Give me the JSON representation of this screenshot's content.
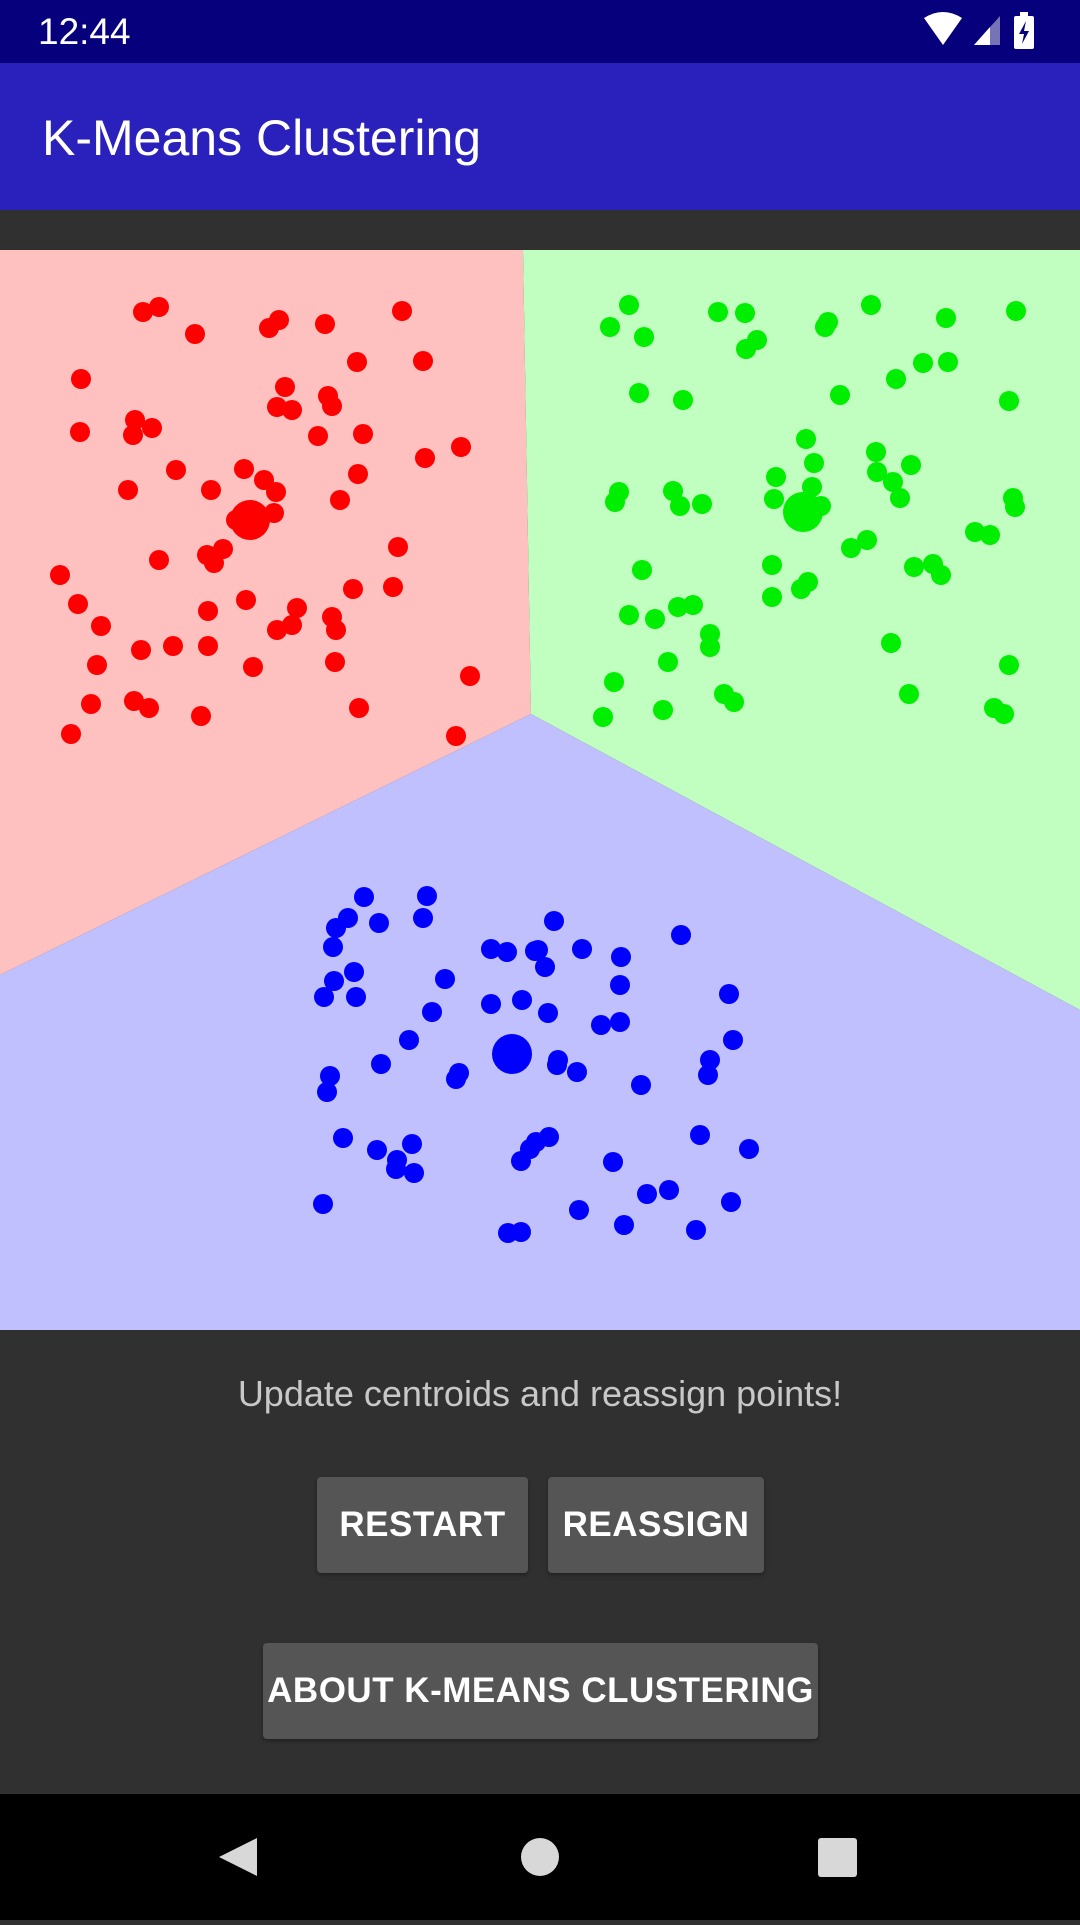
{
  "status_bar": {
    "time": "12:44",
    "icons": [
      "wifi-icon",
      "cellular-signal-icon",
      "battery-charging-icon"
    ]
  },
  "app_bar": {
    "title": "K-Means Clustering"
  },
  "message": "Update centroids and reassign points!",
  "buttons": {
    "restart": "RESTART",
    "reassign": "REASSIGN",
    "about": "ABOUT K-MEANS CLUSTERING"
  },
  "navigation": {
    "back": "back-icon",
    "home": "home-icon",
    "recents": "recents-icon"
  },
  "colors": {
    "status_bar": "#06007c",
    "app_bar": "#2a21bd",
    "background": "#303030",
    "red_cluster": "#ff0000",
    "red_region": "#ffc0c0",
    "green_cluster": "#00ee00",
    "green_region": "#c0ffc0",
    "blue_cluster": "#0000ff",
    "blue_region": "#c0c0ff",
    "button": "#555555"
  },
  "clusters": [
    {
      "name": "red",
      "color": "#ff0000",
      "centroid": [
        250,
        270
      ],
      "points": [
        [
          143,
          62
        ],
        [
          159,
          57
        ],
        [
          195,
          84
        ],
        [
          269,
          78
        ],
        [
          279,
          70
        ],
        [
          325,
          74
        ],
        [
          402,
          61
        ],
        [
          81,
          129
        ],
        [
          80,
          182
        ],
        [
          135,
          170
        ],
        [
          152,
          178
        ],
        [
          133,
          185
        ],
        [
          285,
          137
        ],
        [
          277,
          157
        ],
        [
          292,
          160
        ],
        [
          328,
          146
        ],
        [
          332,
          156
        ],
        [
          357,
          112
        ],
        [
          423,
          111
        ],
        [
          318,
          186
        ],
        [
          363,
          184
        ],
        [
          461,
          197
        ],
        [
          425,
          208
        ],
        [
          176,
          220
        ],
        [
          128,
          240
        ],
        [
          211,
          240
        ],
        [
          244,
          219
        ],
        [
          264,
          230
        ],
        [
          276,
          242
        ],
        [
          358,
          224
        ],
        [
          340,
          250
        ],
        [
          274,
          263
        ],
        [
          243,
          264
        ],
        [
          236,
          270
        ],
        [
          207,
          305
        ],
        [
          223,
          299
        ],
        [
          214,
          313
        ],
        [
          398,
          297
        ],
        [
          60,
          325
        ],
        [
          78,
          354
        ],
        [
          101,
          376
        ],
        [
          159,
          310
        ],
        [
          246,
          350
        ],
        [
          297,
          358
        ],
        [
          332,
          367
        ],
        [
          277,
          380
        ],
        [
          292,
          375
        ],
        [
          353,
          339
        ],
        [
          393,
          337
        ],
        [
          208,
          361
        ],
        [
          173,
          396
        ],
        [
          141,
          400
        ],
        [
          208,
          396
        ],
        [
          336,
          380
        ],
        [
          253,
          417
        ],
        [
          97,
          415
        ],
        [
          91,
          454
        ],
        [
          134,
          451
        ],
        [
          149,
          458
        ],
        [
          71,
          484
        ],
        [
          201,
          466
        ],
        [
          359,
          458
        ],
        [
          335,
          412
        ],
        [
          456,
          486
        ],
        [
          470,
          426
        ]
      ]
    },
    {
      "name": "green",
      "color": "#00ee00",
      "centroid": [
        803,
        262
      ],
      "points": [
        [
          629,
          55
        ],
        [
          610,
          77
        ],
        [
          644,
          87
        ],
        [
          718,
          62
        ],
        [
          745,
          63
        ],
        [
          757,
          90
        ],
        [
          746,
          99
        ],
        [
          828,
          72
        ],
        [
          825,
          77
        ],
        [
          871,
          55
        ],
        [
          946,
          68
        ],
        [
          1016,
          61
        ],
        [
          639,
          143
        ],
        [
          683,
          150
        ],
        [
          840,
          145
        ],
        [
          896,
          129
        ],
        [
          923,
          113
        ],
        [
          948,
          112
        ],
        [
          1009,
          151
        ],
        [
          806,
          189
        ],
        [
          814,
          213
        ],
        [
          876,
          202
        ],
        [
          877,
          222
        ],
        [
          911,
          215
        ],
        [
          893,
          232
        ],
        [
          900,
          248
        ],
        [
          776,
          227
        ],
        [
          774,
          249
        ],
        [
          812,
          237
        ],
        [
          821,
          256
        ],
        [
          1013,
          248
        ],
        [
          1015,
          257
        ],
        [
          619,
          242
        ],
        [
          615,
          252
        ],
        [
          673,
          241
        ],
        [
          680,
          256
        ],
        [
          702,
          254
        ],
        [
          851,
          298
        ],
        [
          867,
          290
        ],
        [
          975,
          282
        ],
        [
          990,
          285
        ],
        [
          941,
          325
        ],
        [
          642,
          320
        ],
        [
          678,
          357
        ],
        [
          693,
          355
        ],
        [
          629,
          365
        ],
        [
          655,
          369
        ],
        [
          710,
          384
        ],
        [
          772,
          315
        ],
        [
          772,
          347
        ],
        [
          808,
          332
        ],
        [
          801,
          339
        ],
        [
          914,
          317
        ],
        [
          933,
          314
        ],
        [
          891,
          393
        ],
        [
          668,
          412
        ],
        [
          710,
          397
        ],
        [
          724,
          444
        ],
        [
          734,
          452
        ],
        [
          614,
          432
        ],
        [
          603,
          467
        ],
        [
          663,
          460
        ],
        [
          909,
          444
        ],
        [
          1009,
          415
        ],
        [
          994,
          458
        ],
        [
          1004,
          464
        ]
      ]
    },
    {
      "name": "blue",
      "color": "#0000ff",
      "centroid": [
        512,
        804
      ],
      "points": [
        [
          364,
          647
        ],
        [
          427,
          646
        ],
        [
          348,
          668
        ],
        [
          379,
          673
        ],
        [
          423,
          668
        ],
        [
          336,
          678
        ],
        [
          333,
          697
        ],
        [
          354,
          722
        ],
        [
          334,
          731
        ],
        [
          324,
          747
        ],
        [
          356,
          747
        ],
        [
          491,
          754
        ],
        [
          445,
          729
        ],
        [
          554,
          671
        ],
        [
          538,
          700
        ],
        [
          535,
          701
        ],
        [
          545,
          717
        ],
        [
          491,
          699
        ],
        [
          507,
          702
        ],
        [
          582,
          699
        ],
        [
          621,
          707
        ],
        [
          620,
          735
        ],
        [
          681,
          685
        ],
        [
          729,
          744
        ],
        [
          522,
          750
        ],
        [
          548,
          763
        ],
        [
          601,
          775
        ],
        [
          620,
          772
        ],
        [
          432,
          762
        ],
        [
          409,
          790
        ],
        [
          381,
          814
        ],
        [
          330,
          826
        ],
        [
          327,
          842
        ],
        [
          459,
          823
        ],
        [
          456,
          829
        ],
        [
          557,
          815
        ],
        [
          577,
          822
        ],
        [
          558,
          810
        ],
        [
          641,
          835
        ],
        [
          733,
          790
        ],
        [
          710,
          810
        ],
        [
          708,
          825
        ],
        [
          343,
          888
        ],
        [
          377,
          900
        ],
        [
          397,
          910
        ],
        [
          412,
          894
        ],
        [
          549,
          887
        ],
        [
          536,
          892
        ],
        [
          530,
          899
        ],
        [
          521,
          911
        ],
        [
          396,
          919
        ],
        [
          414,
          923
        ],
        [
          613,
          912
        ],
        [
          700,
          885
        ],
        [
          749,
          899
        ],
        [
          323,
          954
        ],
        [
          579,
          960
        ],
        [
          624,
          975
        ],
        [
          647,
          944
        ],
        [
          669,
          940
        ],
        [
          731,
          952
        ],
        [
          696,
          980
        ],
        [
          508,
          983
        ],
        [
          521,
          982
        ]
      ]
    }
  ]
}
